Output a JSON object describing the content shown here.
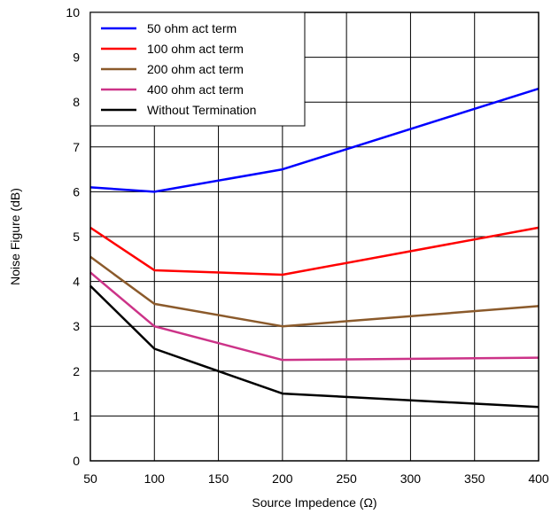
{
  "chart_data": {
    "type": "line",
    "title": "",
    "xlabel": "Source Impedence (Ω)",
    "ylabel": "Noise Figure (dB)",
    "xlim": [
      50,
      400
    ],
    "ylim": [
      0,
      10
    ],
    "xticks": [
      50,
      100,
      150,
      200,
      250,
      300,
      350,
      400
    ],
    "yticks": [
      0,
      1,
      2,
      3,
      4,
      5,
      6,
      7,
      8,
      9,
      10
    ],
    "xtick_labels": [
      "50",
      "100",
      "150",
      "200",
      "250",
      "300",
      "350",
      "400"
    ],
    "ytick_labels": [
      "0",
      "1",
      "2",
      "3",
      "4",
      "5",
      "6",
      "7",
      "8",
      "9",
      "10"
    ],
    "grid": true,
    "legend": "top-left",
    "series": [
      {
        "name": "50 ohm act term",
        "color": "#0000ff",
        "x": [
          50,
          100,
          200,
          400
        ],
        "y": [
          6.1,
          6.0,
          6.5,
          8.3
        ]
      },
      {
        "name": "100 ohm act term",
        "color": "#ff0000",
        "x": [
          50,
          100,
          200,
          400
        ],
        "y": [
          5.2,
          4.25,
          4.15,
          5.2
        ]
      },
      {
        "name": "200 ohm act term",
        "color": "#8b5a2b",
        "x": [
          50,
          100,
          200,
          400
        ],
        "y": [
          4.55,
          3.5,
          3.0,
          3.45
        ]
      },
      {
        "name": "400 ohm act term",
        "color": "#cc3388",
        "x": [
          50,
          100,
          200,
          400
        ],
        "y": [
          4.2,
          3.0,
          2.25,
          2.3
        ]
      },
      {
        "name": "Without Termination",
        "color": "#000000",
        "x": [
          50,
          100,
          200,
          400
        ],
        "y": [
          3.9,
          2.5,
          1.5,
          1.2
        ]
      }
    ]
  }
}
